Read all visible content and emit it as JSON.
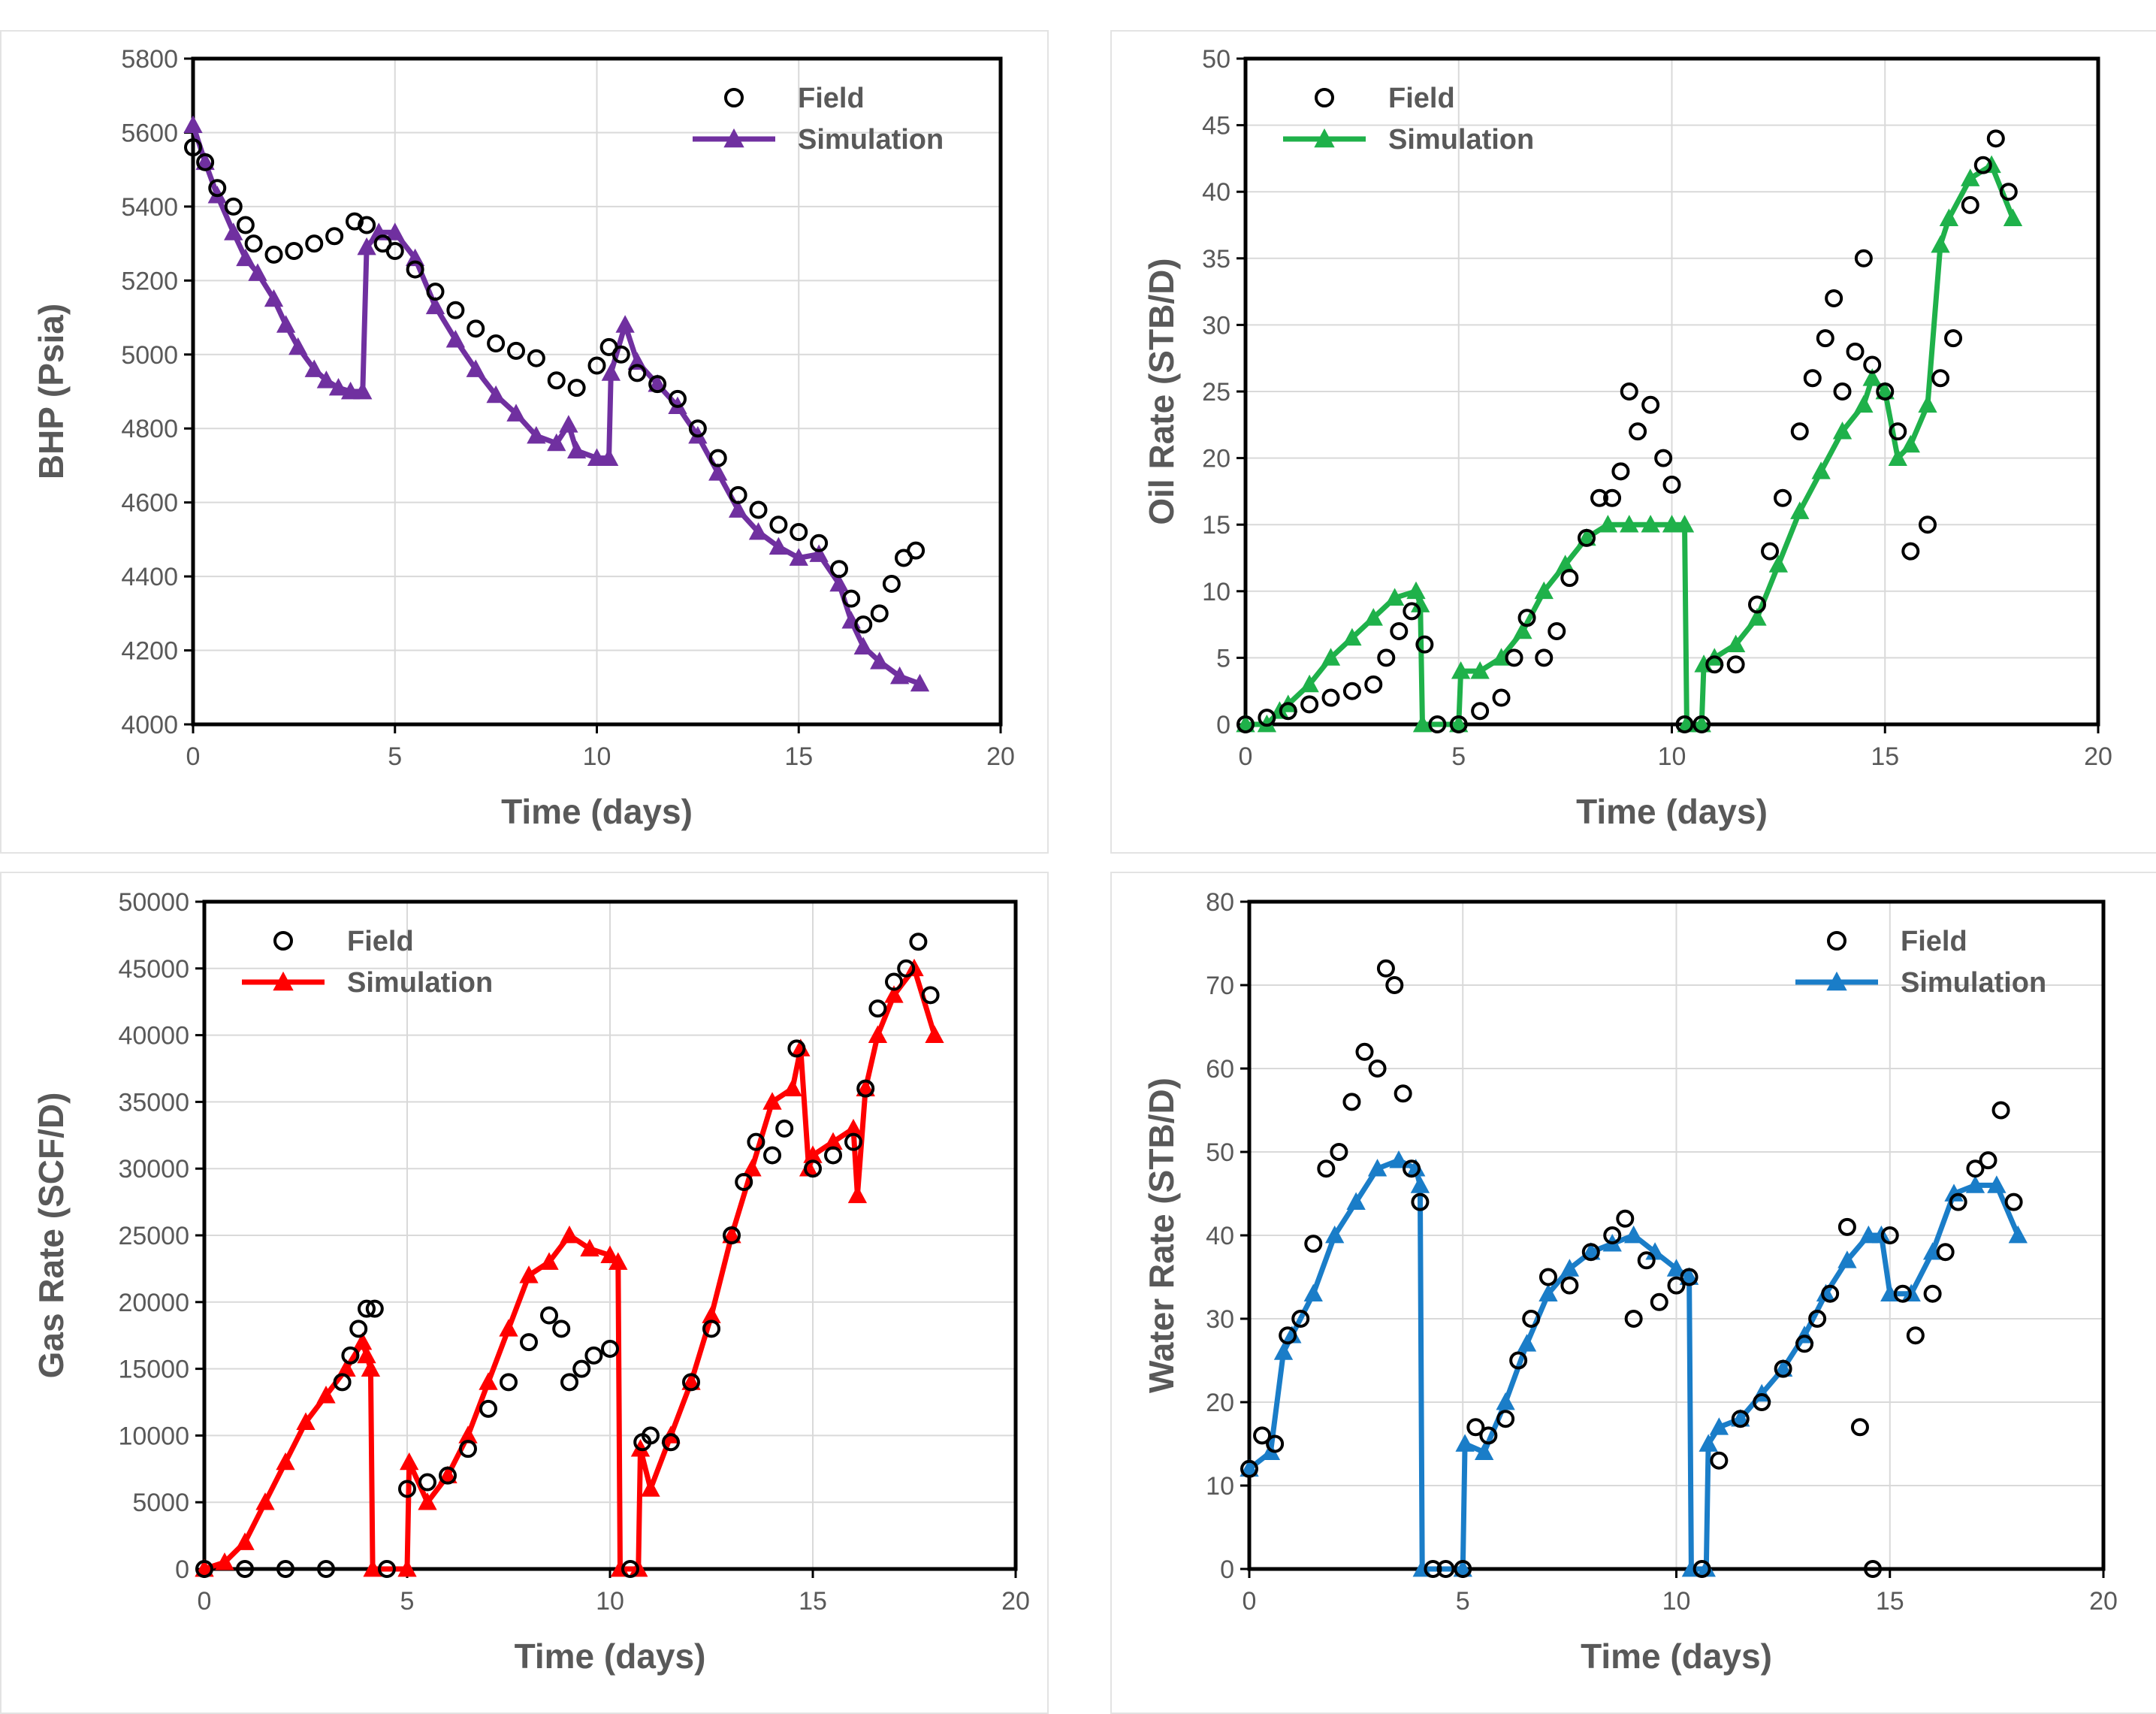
{
  "chart_data": [
    {
      "type": "line",
      "ylabel": "BHP (Psia)",
      "xlabel": "Time (days)",
      "xlim": [
        0,
        20
      ],
      "ylim": [
        4000,
        5800
      ],
      "xticks": [
        0,
        5,
        10,
        15,
        20
      ],
      "yticks": [
        4000,
        4200,
        4400,
        4600,
        4800,
        5000,
        5200,
        5400,
        5600,
        5800
      ],
      "legend": {
        "position": "top-right",
        "field_label": "Field",
        "sim_label": "Simulation"
      },
      "sim_color": "#7030a0",
      "grid": true,
      "series": [
        {
          "name": "Field",
          "marker": "circle",
          "x": [
            0,
            0.3,
            0.6,
            1.0,
            1.3,
            1.5,
            2.0,
            2.5,
            3.0,
            3.5,
            4.0,
            4.3,
            4.7,
            5.0,
            5.5,
            6.0,
            6.5,
            7.0,
            7.5,
            8.0,
            8.5,
            9.0,
            9.5,
            10.0,
            10.3,
            10.6,
            11.0,
            11.5,
            12.0,
            12.5,
            13.0,
            13.5,
            14.0,
            14.5,
            15.0,
            15.5,
            16.0,
            16.3,
            16.6,
            17.0,
            17.3,
            17.6,
            17.9
          ],
          "values": [
            5560,
            5520,
            5450,
            5400,
            5350,
            5300,
            5270,
            5280,
            5300,
            5320,
            5360,
            5350,
            5300,
            5280,
            5230,
            5170,
            5120,
            5070,
            5030,
            5010,
            4990,
            4930,
            4910,
            4970,
            5020,
            5000,
            4950,
            4920,
            4880,
            4800,
            4720,
            4620,
            4580,
            4540,
            4520,
            4490,
            4420,
            4340,
            4270,
            4300,
            4380,
            4450,
            4470
          ]
        },
        {
          "name": "Simulation",
          "marker": "triangle",
          "x": [
            0,
            0.3,
            0.6,
            1.0,
            1.3,
            1.6,
            2.0,
            2.3,
            2.6,
            3.0,
            3.3,
            3.6,
            3.9,
            4.2,
            4.3,
            4.6,
            5.0,
            5.5,
            6.0,
            6.5,
            7.0,
            7.5,
            8.0,
            8.5,
            9.0,
            9.3,
            9.5,
            10.0,
            10.3,
            10.35,
            10.7,
            11.0,
            11.5,
            12.0,
            12.5,
            13.0,
            13.5,
            14.0,
            14.5,
            15.0,
            15.5,
            16.0,
            16.3,
            16.6,
            17.0,
            17.5,
            18.0
          ],
          "values": [
            5620,
            5520,
            5430,
            5330,
            5260,
            5220,
            5150,
            5080,
            5020,
            4960,
            4930,
            4910,
            4900,
            4900,
            5290,
            5330,
            5330,
            5260,
            5130,
            5040,
            4960,
            4890,
            4840,
            4780,
            4760,
            4810,
            4740,
            4720,
            4720,
            4950,
            5080,
            4980,
            4920,
            4860,
            4780,
            4680,
            4580,
            4520,
            4480,
            4450,
            4460,
            4380,
            4280,
            4210,
            4170,
            4130,
            4110
          ]
        }
      ]
    },
    {
      "type": "line",
      "ylabel": "Oil Rate (STB/D)",
      "xlabel": "Time (days)",
      "xlim": [
        0,
        20
      ],
      "ylim": [
        0,
        50
      ],
      "xticks": [
        0,
        5,
        10,
        15,
        20
      ],
      "yticks": [
        0,
        5,
        10,
        15,
        20,
        25,
        30,
        35,
        40,
        45,
        50
      ],
      "legend": {
        "position": "top-left",
        "field_label": "Field",
        "sim_label": "Simulation"
      },
      "sim_color": "#1fb14a",
      "grid": true,
      "series": [
        {
          "name": "Field",
          "marker": "circle",
          "x": [
            0,
            0.5,
            1.0,
            1.5,
            2.0,
            2.5,
            3.0,
            3.3,
            3.6,
            3.9,
            4.2,
            4.5,
            5.0,
            5.5,
            6.0,
            6.3,
            6.6,
            7.0,
            7.3,
            7.6,
            8.0,
            8.3,
            8.6,
            8.8,
            9.0,
            9.2,
            9.5,
            9.8,
            10.0,
            10.3,
            10.7,
            11.0,
            11.5,
            12.0,
            12.3,
            12.6,
            13.0,
            13.3,
            13.6,
            13.8,
            14.0,
            14.3,
            14.5,
            14.7,
            15.0,
            15.3,
            15.6,
            16.0,
            16.3,
            16.6,
            17.0,
            17.3,
            17.6,
            17.9
          ],
          "values": [
            0,
            0.5,
            1,
            1.5,
            2,
            2.5,
            3,
            5,
            7,
            8.5,
            6,
            0,
            0,
            1,
            2,
            5,
            8,
            5,
            7,
            11,
            14,
            17,
            17,
            19,
            25,
            22,
            24,
            20,
            18,
            0,
            0,
            4.5,
            4.5,
            9,
            13,
            17,
            22,
            26,
            29,
            32,
            25,
            28,
            35,
            27,
            25,
            22,
            13,
            15,
            26,
            29,
            39,
            42,
            44,
            40
          ]
        },
        {
          "name": "Simulation",
          "marker": "triangle",
          "x": [
            0,
            0.5,
            0.8,
            1.0,
            1.5,
            2.0,
            2.5,
            3.0,
            3.5,
            4.0,
            4.1,
            4.15,
            5.0,
            5.05,
            5.5,
            6.0,
            6.5,
            7.0,
            7.5,
            8.0,
            8.5,
            9.0,
            9.5,
            10.0,
            10.3,
            10.35,
            10.7,
            10.75,
            11.0,
            11.5,
            12.0,
            12.5,
            13.0,
            13.5,
            14.0,
            14.5,
            14.7,
            15.0,
            15.3,
            15.6,
            16.0,
            16.3,
            16.5,
            17.0,
            17.5,
            18.0
          ],
          "values": [
            0,
            0,
            1,
            1.5,
            3,
            5,
            6.5,
            8,
            9.5,
            10,
            9,
            0,
            0,
            4,
            4,
            5,
            7,
            10,
            12,
            14,
            15,
            15,
            15,
            15,
            15,
            0,
            0,
            4.5,
            5,
            6,
            8,
            12,
            16,
            19,
            22,
            24,
            26,
            25,
            20,
            21,
            24,
            36,
            38,
            41,
            42,
            38
          ]
        }
      ]
    },
    {
      "type": "line",
      "ylabel": "Gas Rate (SCF/D)",
      "xlabel": "Time (days)",
      "xlim": [
        0,
        20
      ],
      "ylim": [
        0,
        50000
      ],
      "xticks": [
        0,
        5,
        10,
        15,
        20
      ],
      "yticks": [
        0,
        5000,
        10000,
        15000,
        20000,
        25000,
        30000,
        35000,
        40000,
        45000,
        50000
      ],
      "legend": {
        "position": "top-left",
        "field_label": "Field",
        "sim_label": "Simulation"
      },
      "sim_color": "#ff0000",
      "grid": true,
      "series": [
        {
          "name": "Field",
          "marker": "circle",
          "x": [
            0,
            1,
            2,
            3,
            3.4,
            3.6,
            3.8,
            4.0,
            4.2,
            4.5,
            5.0,
            5.5,
            6.0,
            6.5,
            7.0,
            7.5,
            8.0,
            8.5,
            8.8,
            9.0,
            9.3,
            9.6,
            10.0,
            10.5,
            10.8,
            11.0,
            11.5,
            12.0,
            12.5,
            13.0,
            13.3,
            13.6,
            14.0,
            14.3,
            14.6,
            15.0,
            15.5,
            16.0,
            16.3,
            16.6,
            17.0,
            17.3,
            17.6,
            17.9
          ],
          "values": [
            0,
            0,
            0,
            0,
            14000,
            16000,
            18000,
            19500,
            19500,
            0,
            6000,
            6500,
            7000,
            9000,
            12000,
            14000,
            17000,
            19000,
            18000,
            14000,
            15000,
            16000,
            16500,
            0,
            9500,
            10000,
            9500,
            14000,
            18000,
            25000,
            29000,
            32000,
            31000,
            33000,
            39000,
            30000,
            31000,
            32000,
            36000,
            42000,
            44000,
            45000,
            47000,
            43000
          ]
        },
        {
          "name": "Simulation",
          "marker": "triangle",
          "x": [
            0,
            0.5,
            1.0,
            1.5,
            2.0,
            2.5,
            3.0,
            3.5,
            3.9,
            4.0,
            4.1,
            4.15,
            5.0,
            5.05,
            5.5,
            6.0,
            6.5,
            7.0,
            7.5,
            8.0,
            8.5,
            9.0,
            9.5,
            10.0,
            10.2,
            10.25,
            10.7,
            10.75,
            11.0,
            11.5,
            12.0,
            12.5,
            13.0,
            13.5,
            14.0,
            14.5,
            14.7,
            14.9,
            15.0,
            15.5,
            16.0,
            16.1,
            16.3,
            16.6,
            17.0,
            17.5,
            18.0
          ],
          "values": [
            0,
            500,
            2000,
            5000,
            8000,
            11000,
            13000,
            15000,
            17000,
            16000,
            15000,
            0,
            0,
            8000,
            5000,
            7000,
            10000,
            14000,
            18000,
            22000,
            23000,
            25000,
            24000,
            23500,
            23000,
            0,
            0,
            9000,
            6000,
            10000,
            14000,
            19000,
            25000,
            30000,
            35000,
            36000,
            39000,
            30000,
            31000,
            32000,
            33000,
            28000,
            36000,
            40000,
            43000,
            45000,
            40000
          ]
        }
      ]
    },
    {
      "type": "line",
      "ylabel": "Water Rate (STB/D)",
      "xlabel": "Time (days)",
      "xlim": [
        0,
        20
      ],
      "ylim": [
        0,
        80
      ],
      "xticks": [
        0,
        5,
        10,
        15,
        20
      ],
      "yticks": [
        0,
        10,
        20,
        30,
        40,
        50,
        60,
        70,
        80
      ],
      "legend": {
        "position": "top-right",
        "field_label": "Field",
        "sim_label": "Simulation"
      },
      "sim_color": "#1a7dc8",
      "grid": true,
      "series": [
        {
          "name": "Field",
          "marker": "circle",
          "x": [
            0,
            0.3,
            0.6,
            0.9,
            1.2,
            1.5,
            1.8,
            2.1,
            2.4,
            2.7,
            3.0,
            3.2,
            3.4,
            3.6,
            3.8,
            4.0,
            4.3,
            4.6,
            5.0,
            5.3,
            5.6,
            6.0,
            6.3,
            6.6,
            7.0,
            7.5,
            8.0,
            8.5,
            8.8,
            9.0,
            9.3,
            9.6,
            10.0,
            10.3,
            10.6,
            11.0,
            11.5,
            12.0,
            12.5,
            13.0,
            13.3,
            13.6,
            14.0,
            14.3,
            14.6,
            15.0,
            15.3,
            15.6,
            16.0,
            16.3,
            16.6,
            17.0,
            17.3,
            17.6,
            17.9
          ],
          "values": [
            12,
            16,
            15,
            28,
            30,
            39,
            48,
            50,
            56,
            62,
            60,
            72,
            70,
            57,
            48,
            44,
            0,
            0,
            0,
            17,
            16,
            18,
            25,
            30,
            35,
            34,
            38,
            40,
            42,
            30,
            37,
            32,
            34,
            35,
            0,
            13,
            18,
            20,
            24,
            27,
            30,
            33,
            41,
            17,
            0,
            40,
            33,
            28,
            33,
            38,
            44,
            48,
            49,
            55,
            44
          ]
        },
        {
          "name": "Simulation",
          "marker": "triangle",
          "x": [
            0,
            0.5,
            0.8,
            1.0,
            1.5,
            2.0,
            2.5,
            3.0,
            3.5,
            3.9,
            4.0,
            4.05,
            5.0,
            5.05,
            5.5,
            6.0,
            6.5,
            7.0,
            7.5,
            8.0,
            8.5,
            9.0,
            9.5,
            10.0,
            10.3,
            10.35,
            10.7,
            10.75,
            11.0,
            11.5,
            12.0,
            12.5,
            13.0,
            13.5,
            14.0,
            14.5,
            14.8,
            15.0,
            15.5,
            16.0,
            16.5,
            17.0,
            17.5,
            18.0
          ],
          "values": [
            12,
            14,
            26,
            28,
            33,
            40,
            44,
            48,
            49,
            48,
            46,
            0,
            0,
            15,
            14,
            20,
            27,
            33,
            36,
            38,
            39,
            40,
            38,
            36,
            35,
            0,
            0,
            15,
            17,
            18,
            21,
            24,
            28,
            33,
            37,
            40,
            40,
            33,
            33,
            38,
            45,
            46,
            46,
            40
          ]
        }
      ]
    }
  ]
}
